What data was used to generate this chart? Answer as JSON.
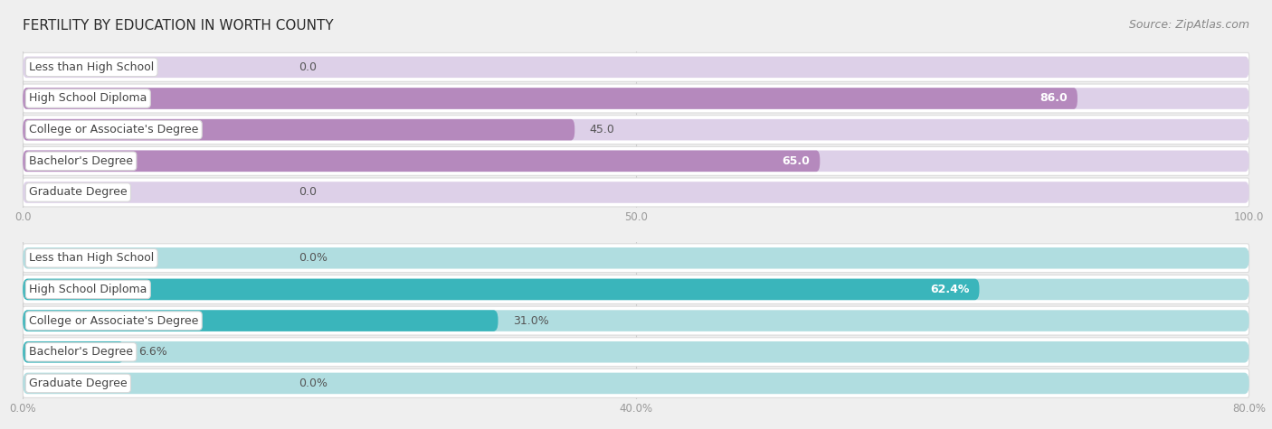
{
  "title": "FERTILITY BY EDUCATION IN WORTH COUNTY",
  "source": "Source: ZipAtlas.com",
  "top_chart": {
    "categories": [
      "Less than High School",
      "High School Diploma",
      "College or Associate's Degree",
      "Bachelor's Degree",
      "Graduate Degree"
    ],
    "values": [
      0.0,
      86.0,
      45.0,
      65.0,
      0.0
    ],
    "bar_color": "#b589bd",
    "bar_bg_color": "#ddd0e8",
    "xlim_max": 100.0,
    "xticks": [
      0.0,
      50.0,
      100.0
    ],
    "xtick_labels": [
      "0.0",
      "50.0",
      "100.0"
    ]
  },
  "bottom_chart": {
    "categories": [
      "Less than High School",
      "High School Diploma",
      "College or Associate's Degree",
      "Bachelor's Degree",
      "Graduate Degree"
    ],
    "values": [
      0.0,
      62.4,
      31.0,
      6.6,
      0.0
    ],
    "bar_color": "#3ab5bb",
    "bar_bg_color": "#b0dde0",
    "xlim_max": 80.0,
    "xticks": [
      0.0,
      40.0,
      80.0
    ],
    "xtick_labels": [
      "0.0%",
      "40.0%",
      "80.0%"
    ]
  },
  "bg_color": "#efefef",
  "row_bg_color": "#ffffff",
  "row_border_color": "#d8d8d8",
  "label_color": "#444444",
  "value_color_outside": "#555555",
  "axis_tick_color": "#999999",
  "grid_color": "#cccccc",
  "bar_height": 0.68,
  "label_fontsize": 9,
  "value_fontsize": 9,
  "title_fontsize": 11,
  "source_fontsize": 9
}
